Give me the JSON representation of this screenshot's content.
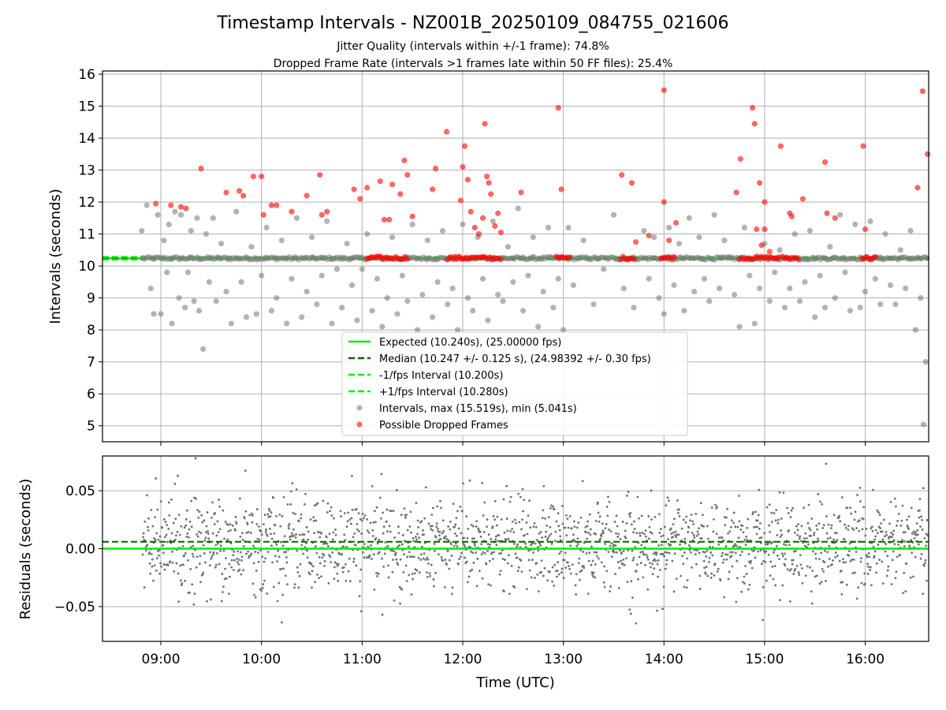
{
  "chart_data": [
    {
      "type": "scatter",
      "title": "Timestamp Intervals - NZ001B_20250109_084755_021606",
      "subtitle_lines": [
        "Jitter Quality (intervals within +/-1 frame): 74.8%",
        "Dropped Frame Rate (intervals >1 frames late within 50 FF files): 25.4%"
      ],
      "ylabel": "Intervals (seconds)",
      "xlim_hours": [
        8.42,
        16.63
      ],
      "ylim": [
        4.5,
        16.1
      ],
      "yticks": [
        5,
        6,
        7,
        8,
        9,
        10,
        11,
        12,
        13,
        14,
        15,
        16
      ],
      "xticks_hours": [
        9,
        10,
        11,
        12,
        13,
        14,
        15,
        16
      ],
      "grid": true,
      "legend_position": "lower center",
      "colors": {
        "expected": "#00ee00",
        "median": "#006400",
        "interval_bounds": "#00ee00",
        "intervals": "#808080",
        "dropped": "#ff0000"
      },
      "lines": {
        "expected": 10.24,
        "median": 10.247,
        "minus_1fps": 10.2,
        "plus_1fps": 10.28
      },
      "legend": [
        "Expected (10.240s), (25.00000 fps)",
        "Median (10.247 +/- 0.125 s), (24.98392 +/- 0.30 fps)",
        "-1/fps Interval (10.200s)",
        "+1/fps Interval (10.280s)",
        "Intervals, max (15.519s), min (5.041s)",
        "Possible Dropped Frames"
      ],
      "series": [
        {
          "name": "Intervals, max (15.519s), min (5.041s)",
          "points": [
            [
              8.81,
              11.1
            ],
            [
              8.86,
              11.9
            ],
            [
              8.9,
              9.3
            ],
            [
              8.93,
              8.5
            ],
            [
              8.97,
              11.6
            ],
            [
              9.0,
              8.5
            ],
            [
              9.03,
              10.8
            ],
            [
              9.06,
              9.8
            ],
            [
              9.08,
              11.3
            ],
            [
              9.11,
              8.2
            ],
            [
              9.14,
              11.7
            ],
            [
              9.18,
              9.0
            ],
            [
              9.2,
              11.6
            ],
            [
              9.24,
              8.7
            ],
            [
              9.27,
              9.8
            ],
            [
              9.3,
              11.1
            ],
            [
              9.33,
              8.9
            ],
            [
              9.36,
              11.5
            ],
            [
              9.38,
              8.6
            ],
            [
              9.42,
              7.4
            ],
            [
              9.45,
              11.0
            ],
            [
              9.48,
              9.5
            ],
            [
              9.52,
              11.5
            ],
            [
              9.55,
              8.9
            ],
            [
              9.6,
              10.7
            ],
            [
              9.65,
              9.2
            ],
            [
              9.7,
              8.2
            ],
            [
              9.75,
              11.7
            ],
            [
              9.8,
              9.5
            ],
            [
              9.85,
              8.4
            ],
            [
              9.9,
              10.6
            ],
            [
              9.95,
              8.5
            ],
            [
              10.0,
              9.7
            ],
            [
              10.05,
              11.2
            ],
            [
              10.1,
              8.6
            ],
            [
              10.15,
              9.0
            ],
            [
              10.2,
              10.8
            ],
            [
              10.25,
              8.2
            ],
            [
              10.3,
              9.6
            ],
            [
              10.35,
              11.5
            ],
            [
              10.4,
              8.4
            ],
            [
              10.45,
              9.2
            ],
            [
              10.5,
              10.9
            ],
            [
              10.55,
              8.8
            ],
            [
              10.6,
              9.7
            ],
            [
              10.65,
              11.4
            ],
            [
              10.7,
              8.2
            ],
            [
              10.75,
              9.9
            ],
            [
              10.8,
              8.7
            ],
            [
              10.85,
              10.7
            ],
            [
              10.9,
              9.4
            ],
            [
              10.95,
              8.3
            ],
            [
              11.0,
              9.9
            ],
            [
              11.05,
              11.0
            ],
            [
              11.1,
              8.6
            ],
            [
              11.15,
              9.6
            ],
            [
              11.2,
              8.1
            ],
            [
              11.25,
              9.0
            ],
            [
              11.3,
              10.9
            ],
            [
              11.35,
              8.5
            ],
            [
              11.4,
              9.7
            ],
            [
              11.45,
              8.9
            ],
            [
              11.5,
              11.3
            ],
            [
              11.55,
              8.0
            ],
            [
              11.6,
              9.1
            ],
            [
              11.65,
              10.8
            ],
            [
              11.7,
              8.4
            ],
            [
              11.75,
              9.5
            ],
            [
              11.8,
              11.1
            ],
            [
              11.85,
              8.8
            ],
            [
              11.9,
              9.3
            ],
            [
              11.95,
              8.0
            ],
            [
              12.0,
              11.3
            ],
            [
              12.05,
              9.0
            ],
            [
              12.1,
              8.6
            ],
            [
              12.15,
              10.9
            ],
            [
              12.2,
              9.6
            ],
            [
              12.25,
              8.3
            ],
            [
              12.3,
              11.4
            ],
            [
              12.35,
              9.1
            ],
            [
              12.4,
              8.9
            ],
            [
              12.45,
              10.6
            ],
            [
              12.5,
              9.5
            ],
            [
              12.55,
              11.8
            ],
            [
              12.6,
              8.6
            ],
            [
              12.65,
              9.7
            ],
            [
              12.7,
              10.9
            ],
            [
              12.75,
              8.1
            ],
            [
              12.8,
              9.2
            ],
            [
              12.85,
              11.2
            ],
            [
              12.9,
              8.7
            ],
            [
              12.95,
              9.6
            ],
            [
              13.0,
              8.0
            ],
            [
              13.05,
              11.2
            ],
            [
              13.1,
              9.4
            ],
            [
              13.2,
              10.8
            ],
            [
              13.3,
              8.8
            ],
            [
              13.4,
              9.9
            ],
            [
              13.5,
              11.6
            ],
            [
              13.6,
              9.3
            ],
            [
              13.7,
              8.7
            ],
            [
              13.8,
              11.1
            ],
            [
              13.85,
              9.6
            ],
            [
              13.9,
              10.9
            ],
            [
              13.95,
              9.0
            ],
            [
              14.0,
              8.5
            ],
            [
              14.05,
              11.2
            ],
            [
              14.1,
              9.4
            ],
            [
              14.15,
              10.7
            ],
            [
              14.2,
              8.6
            ],
            [
              14.25,
              11.5
            ],
            [
              14.3,
              9.2
            ],
            [
              14.35,
              10.9
            ],
            [
              14.4,
              9.6
            ],
            [
              14.45,
              8.9
            ],
            [
              14.5,
              11.6
            ],
            [
              14.55,
              9.3
            ],
            [
              14.6,
              10.8
            ],
            [
              14.7,
              9.1
            ],
            [
              14.75,
              8.1
            ],
            [
              14.8,
              11.2
            ],
            [
              14.85,
              9.7
            ],
            [
              14.9,
              8.2
            ],
            [
              14.95,
              9.3
            ],
            [
              15.0,
              10.7
            ],
            [
              15.05,
              8.9
            ],
            [
              15.1,
              9.8
            ],
            [
              15.15,
              10.5
            ],
            [
              15.2,
              8.7
            ],
            [
              15.25,
              9.3
            ],
            [
              15.3,
              11.0
            ],
            [
              15.35,
              8.9
            ],
            [
              15.4,
              9.5
            ],
            [
              15.45,
              11.1
            ],
            [
              15.5,
              8.4
            ],
            [
              15.55,
              9.7
            ],
            [
              15.6,
              8.7
            ],
            [
              15.65,
              10.6
            ],
            [
              15.7,
              9.0
            ],
            [
              15.75,
              11.6
            ],
            [
              15.8,
              9.8
            ],
            [
              15.85,
              8.6
            ],
            [
              15.9,
              11.3
            ],
            [
              15.95,
              8.7
            ],
            [
              16.0,
              9.2
            ],
            [
              16.05,
              11.4
            ],
            [
              16.1,
              9.6
            ],
            [
              16.15,
              8.8
            ],
            [
              16.2,
              11.0
            ],
            [
              16.25,
              9.4
            ],
            [
              16.3,
              8.8
            ],
            [
              16.35,
              10.5
            ],
            [
              16.4,
              9.3
            ],
            [
              16.45,
              11.1
            ],
            [
              16.5,
              8.0
            ],
            [
              16.55,
              9.0
            ],
            [
              16.58,
              5.04
            ],
            [
              16.6,
              7.0
            ]
          ]
        },
        {
          "name": "Possible Dropped Frames",
          "points": [
            [
              8.95,
              11.95
            ],
            [
              9.1,
              11.9
            ],
            [
              9.2,
              11.85
            ],
            [
              9.25,
              11.8
            ],
            [
              9.4,
              13.05
            ],
            [
              9.65,
              12.3
            ],
            [
              9.78,
              12.35
            ],
            [
              9.82,
              12.2
            ],
            [
              9.92,
              12.8
            ],
            [
              10.0,
              12.8
            ],
            [
              10.02,
              11.6
            ],
            [
              10.1,
              11.9
            ],
            [
              10.15,
              11.9
            ],
            [
              10.3,
              11.7
            ],
            [
              10.45,
              12.2
            ],
            [
              10.58,
              12.85
            ],
            [
              10.6,
              11.6
            ],
            [
              10.65,
              11.7
            ],
            [
              10.92,
              12.4
            ],
            [
              10.98,
              12.1
            ],
            [
              11.05,
              12.45
            ],
            [
              11.18,
              12.65
            ],
            [
              11.22,
              11.45
            ],
            [
              11.27,
              11.45
            ],
            [
              11.3,
              12.55
            ],
            [
              11.38,
              12.25
            ],
            [
              11.42,
              13.3
            ],
            [
              11.45,
              12.85
            ],
            [
              11.5,
              11.55
            ],
            [
              11.7,
              12.4
            ],
            [
              11.73,
              13.05
            ],
            [
              11.84,
              14.2
            ],
            [
              11.98,
              12.05
            ],
            [
              12.0,
              13.1
            ],
            [
              12.02,
              13.75
            ],
            [
              12.05,
              12.7
            ],
            [
              12.08,
              11.7
            ],
            [
              12.12,
              11.2
            ],
            [
              12.16,
              11.0
            ],
            [
              12.2,
              11.5
            ],
            [
              12.22,
              14.45
            ],
            [
              12.24,
              12.8
            ],
            [
              12.26,
              12.6
            ],
            [
              12.28,
              12.25
            ],
            [
              12.32,
              11.25
            ],
            [
              12.35,
              11.65
            ],
            [
              12.38,
              11.05
            ],
            [
              12.58,
              12.3
            ],
            [
              12.95,
              14.95
            ],
            [
              12.98,
              12.4
            ],
            [
              13.58,
              12.85
            ],
            [
              13.68,
              12.6
            ],
            [
              13.72,
              10.75
            ],
            [
              13.85,
              10.95
            ],
            [
              14.0,
              15.5
            ],
            [
              14.0,
              12.0
            ],
            [
              14.05,
              10.8
            ],
            [
              14.12,
              11.35
            ],
            [
              14.72,
              12.3
            ],
            [
              14.76,
              13.35
            ],
            [
              14.88,
              14.95
            ],
            [
              14.9,
              14.45
            ],
            [
              14.92,
              11.15
            ],
            [
              14.95,
              12.6
            ],
            [
              14.97,
              10.65
            ],
            [
              15.0,
              12.0
            ],
            [
              15.0,
              11.15
            ],
            [
              15.05,
              10.45
            ],
            [
              15.16,
              13.75
            ],
            [
              15.25,
              11.65
            ],
            [
              15.27,
              11.55
            ],
            [
              15.38,
              12.1
            ],
            [
              15.6,
              13.25
            ],
            [
              15.62,
              11.65
            ],
            [
              15.7,
              11.5
            ],
            [
              15.98,
              13.75
            ],
            [
              16.0,
              11.15
            ],
            [
              16.52,
              12.45
            ],
            [
              16.57,
              15.47
            ],
            [
              16.62,
              13.5
            ]
          ]
        }
      ],
      "dropped_band_segments_hours": [
        [
          11.05,
          11.45
        ],
        [
          11.85,
          12.4
        ],
        [
          12.93,
          13.08
        ],
        [
          13.57,
          13.72
        ],
        [
          13.97,
          14.12
        ],
        [
          14.75,
          15.15
        ],
        [
          15.18,
          15.35
        ],
        [
          15.97,
          16.12
        ]
      ]
    },
    {
      "type": "scatter",
      "ylabel": "Residuals (seconds)",
      "xlabel": "Time (UTC)",
      "xlim_hours": [
        8.42,
        16.63
      ],
      "ylim": [
        -0.08,
        0.08
      ],
      "yticks": [
        -0.05,
        0.0,
        0.05
      ],
      "ytick_labels": [
        "−0.05",
        "0.00",
        "0.05"
      ],
      "xticks_hours": [
        9,
        10,
        11,
        12,
        13,
        14,
        15,
        16
      ],
      "xtick_labels": [
        "09:00",
        "10:00",
        "11:00",
        "12:00",
        "13:00",
        "14:00",
        "15:00",
        "16:00"
      ],
      "grid": true,
      "lines": {
        "zero": 0.0,
        "median": 0.006
      },
      "colors": {
        "zero": "#00ee00",
        "median": "#006400",
        "points": "#707070"
      },
      "residual_range": [
        -0.075,
        0.078
      ],
      "residual_std": 0.025
    }
  ]
}
